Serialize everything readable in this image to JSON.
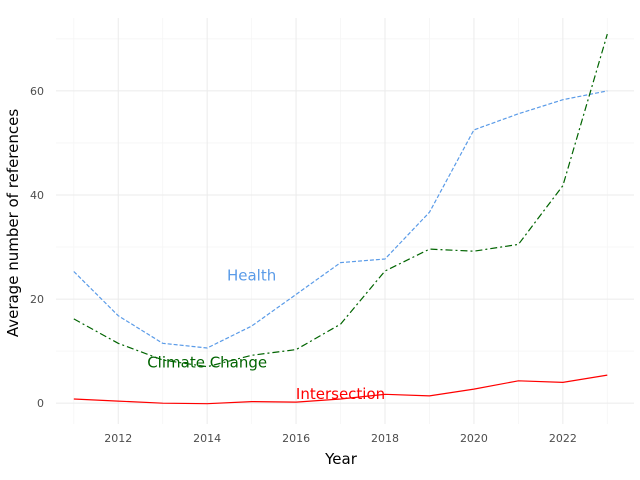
{
  "chart_data": {
    "type": "line",
    "title": "",
    "xlabel": "Year",
    "ylabel": "Average number of references",
    "xlim": [
      2010.6,
      2023.6
    ],
    "ylim": [
      -4,
      74
    ],
    "x_ticks": [
      2012,
      2014,
      2016,
      2018,
      2020,
      2022
    ],
    "y_ticks": [
      0,
      20,
      40,
      60
    ],
    "grid": true,
    "legend": "none",
    "x": [
      2011,
      2012,
      2013,
      2014,
      2015,
      2016,
      2017,
      2018,
      2019,
      2020,
      2021,
      2022,
      2023
    ],
    "series": [
      {
        "name": "Health",
        "color": "#5a9be8",
        "dash": "dashed",
        "label_x": 2015.0,
        "label_y": 24.5,
        "values": [
          25.3,
          16.8,
          11.5,
          10.6,
          14.8,
          20.9,
          27.0,
          27.7,
          36.7,
          52.5,
          55.6,
          58.3,
          60.0
        ]
      },
      {
        "name": "Climate Change",
        "color": "#006400",
        "dash": "dashdot",
        "label_x": 2014.0,
        "label_y": 7.8,
        "values": [
          16.2,
          11.5,
          8.3,
          7.0,
          9.2,
          10.3,
          15.2,
          25.4,
          29.6,
          29.2,
          30.5,
          41.8,
          70.9
        ]
      },
      {
        "name": "Intersection",
        "color": "#ff0000",
        "dash": "solid",
        "label_x": 2017.0,
        "label_y": 1.8,
        "values": [
          0.8,
          0.4,
          0.0,
          -0.1,
          0.3,
          0.2,
          0.8,
          1.7,
          1.4,
          2.7,
          4.3,
          4.0,
          5.4
        ]
      }
    ]
  }
}
